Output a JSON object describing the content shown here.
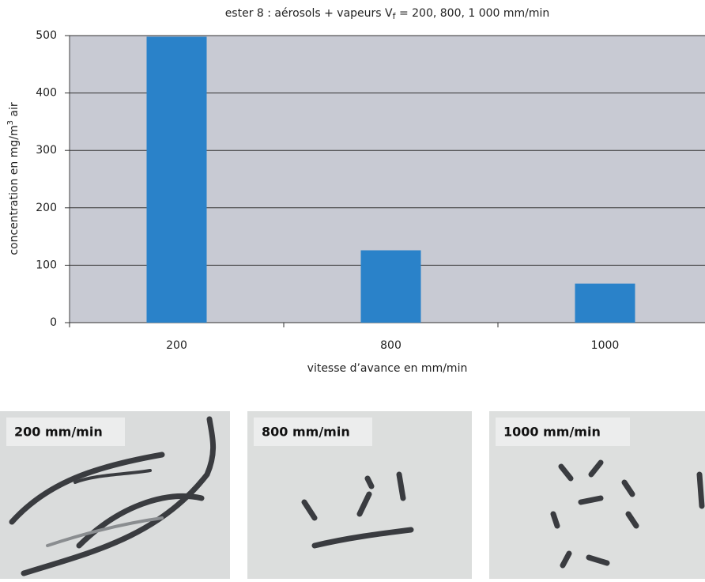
{
  "chart_data": {
    "type": "bar",
    "title": [
      "ester 8 : aérosols + vapeurs V",
      "f",
      " = 200, 800, 1 000 mm/min"
    ],
    "x_label": "vitesse d’avance en mm/min",
    "y_label": [
      "concentration en mg/m",
      "3",
      " air"
    ],
    "categories": [
      "200",
      "800",
      "1000"
    ],
    "values": [
      498,
      126,
      68
    ],
    "color": "#2a82c9",
    "ylim": [
      0,
      500
    ],
    "yticks": [
      0,
      100,
      200,
      300,
      400,
      500
    ],
    "grid": true
  },
  "photos": [
    {
      "label": "200 mm/min"
    },
    {
      "label": "800 mm/min"
    },
    {
      "label": "1000 mm/min"
    }
  ]
}
